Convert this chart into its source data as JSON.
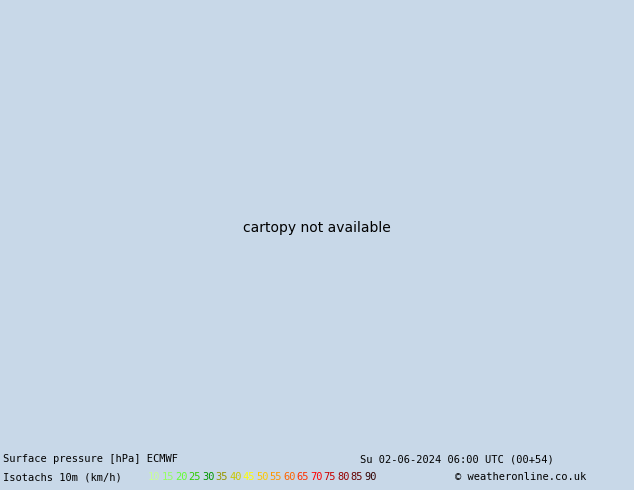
{
  "title_line1": "Surface pressure [hPa] ECMWF",
  "title_line2": "Isotachs 10m (km/h)",
  "date_str": "Su 02-06-2024 06:00 UTC (00+54)",
  "copyright": "© weatheronline.co.uk",
  "fig_width": 6.34,
  "fig_height": 4.9,
  "dpi": 100,
  "colorbar_values": [
    10,
    15,
    20,
    25,
    30,
    35,
    40,
    45,
    50,
    55,
    60,
    65,
    70,
    75,
    80,
    85,
    90
  ],
  "speed_colors": [
    "#c8ff96",
    "#96ff64",
    "#64ff32",
    "#32cd00",
    "#009600",
    "#969600",
    "#c8c800",
    "#ffff00",
    "#ffc800",
    "#ff9600",
    "#ff6400",
    "#ff3200",
    "#ff0000",
    "#c80000",
    "#960000",
    "#640000",
    "#320000"
  ],
  "bg_color": "#c8d8e8",
  "land_color": "#c8e8a0",
  "coast_color": "#606060",
  "isobar_color": "#000000",
  "isobar_label_color": "#000000",
  "isotach_cyan_color": "#00b4b4",
  "isotach_green_color": "#00b400",
  "isotach_blue_color": "#0000c8",
  "isotach_purple_color": "#9600c8",
  "isotach_yellow_color": "#c8c800",
  "isotach_orange_color": "#ff9600",
  "font_size_bottom": 7.5,
  "font_size_title": 7.5,
  "extent": [
    -12.5,
    12.0,
    47.5,
    62.5
  ],
  "proj_lon": -0.25,
  "proj_lat": 55.0
}
